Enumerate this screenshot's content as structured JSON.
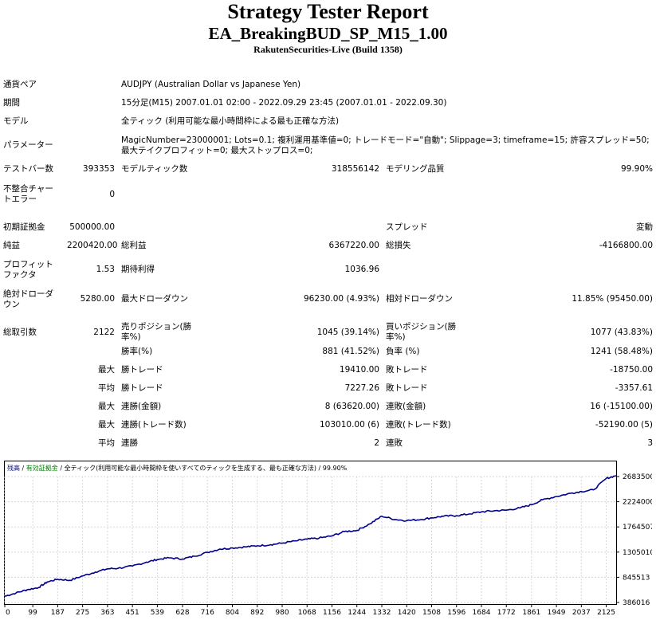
{
  "report": {
    "title": "Strategy Tester Report",
    "ea_name": "EA_BreakingBUD_SP_M15_1.00",
    "broker": "RakutenSecurities-Live (Build 1358)"
  },
  "info": {
    "symbol_label": "通貨ペア",
    "symbol_value": "AUDJPY (Australian Dollar vs Japanese Yen)",
    "period_label": "期間",
    "period_value": "15分足(M15) 2007.01.01 02:00 - 2022.09.29 23:45 (2007.01.01 - 2022.09.30)",
    "model_label": "モデル",
    "model_value": "全ティック (利用可能な最小時間枠による最も正確な方法)",
    "params_label": "パラメーター",
    "params_value": "MagicNumber=23000001; Lots=0.1; 複利運用基準値=0; トレードモード=\"自動\"; Slippage=3; timeframe=15; 許容スプレッド=50; 最大テイクプロフィット=0; 最大ストップロス=0;"
  },
  "stats": {
    "bars_label": "テストバー数",
    "bars_value": "393353",
    "ticks_label": "モデルティック数",
    "ticks_value": "318556142",
    "quality_label": "モデリング品質",
    "quality_value": "99.90%",
    "mismatch_label": "不整合チャートエラー",
    "mismatch_value": "0",
    "deposit_label": "初期証拠金",
    "deposit_value": "500000.00",
    "spread_label": "スプレッド",
    "spread_value": "変動",
    "net_label": "純益",
    "net_value": "2200420.00",
    "gross_profit_label": "総利益",
    "gross_profit_value": "6367220.00",
    "gross_loss_label": "総損失",
    "gross_loss_value": "-4166800.00",
    "pf_label": "プロフィットファクタ",
    "pf_value": "1.53",
    "expected_label": "期待利得",
    "expected_value": "1036.96",
    "abs_dd_label": "絶対ドローダウン",
    "abs_dd_value": "5280.00",
    "max_dd_label": "最大ドローダウン",
    "max_dd_value": "96230.00 (4.93%)",
    "rel_dd_label": "相対ドローダウン",
    "rel_dd_value": "11.85% (95450.00)",
    "trades_label": "総取引数",
    "trades_value": "2122",
    "short_label": "売りポジション(勝率%)",
    "short_value": "1045 (39.14%)",
    "long_label": "買いポジション(勝率%)",
    "long_value": "1077 (43.83%)",
    "winrate_label": "勝率(%)",
    "winrate_value": "881 (41.52%)",
    "lossrate_label": "負率 (%)",
    "lossrate_value": "1241 (58.48%)",
    "max1_label": "最大",
    "largest_win_label": "勝トレード",
    "largest_win_value": "19410.00",
    "largest_loss_label": "敗トレード",
    "largest_loss_value": "-18750.00",
    "avg1_label": "平均",
    "avg_win_label": "勝トレード",
    "avg_win_value": "7227.26",
    "avg_loss_label": "敗トレード",
    "avg_loss_value": "-3357.61",
    "max2_label": "最大",
    "cons_wins_money_label": "連勝(金額)",
    "cons_wins_money_value": "8 (63620.00)",
    "cons_losses_money_label": "連敗(金額)",
    "cons_losses_money_value": "16 (-15100.00)",
    "max3_label": "最大",
    "cons_profit_label": "連勝(トレード数)",
    "cons_profit_value": "103010.00 (6)",
    "cons_loss_label": "連敗(トレード数)",
    "cons_loss_value": "-52190.00 (5)",
    "avg2_label": "平均",
    "avg_cons_wins_label": "連勝",
    "avg_cons_wins_value": "2",
    "avg_cons_losses_label": "連敗",
    "avg_cons_losses_value": "3"
  },
  "chart_data": {
    "type": "line",
    "legend": {
      "balance": "残高",
      "sep1": " / ",
      "equity": "有効証拠金",
      "sep2": " / ",
      "model": "全ティック(利用可能な最小時間枠を使いすべてのティックを生成する、最も正確な方法)",
      "sep3": " / ",
      "quality": "99.90%"
    },
    "colors": {
      "balance": "#00008b",
      "equity": "#008000",
      "grid": "#d8d8d8"
    },
    "x_ticks": [
      "0",
      "99",
      "187",
      "275",
      "363",
      "451",
      "539",
      "628",
      "716",
      "804",
      "892",
      "980",
      "1068",
      "1156",
      "1244",
      "1332",
      "1420",
      "1508",
      "1596",
      "1684",
      "1772",
      "1861",
      "1949",
      "2037",
      "2125"
    ],
    "y_ticks": [
      "2683500",
      "2224000",
      "1764507",
      "1305010",
      "845513",
      "386016"
    ],
    "xlim": [
      0,
      2160
    ],
    "ylim": [
      386016,
      2683500
    ],
    "series": [
      {
        "x": [
          0,
          40,
          80,
          120,
          150,
          187,
          230,
          275,
          320,
          363,
          400,
          451,
          500,
          539,
          580,
          628,
          670,
          716,
          760,
          804,
          850,
          892,
          940,
          980,
          1030,
          1068,
          1110,
          1156,
          1200,
          1244,
          1290,
          1332,
          1380,
          1420,
          1470,
          1508,
          1550,
          1596,
          1640,
          1684,
          1730,
          1772,
          1820,
          1861,
          1900,
          1949,
          2000,
          2037,
          2080,
          2125,
          2160
        ],
        "y": [
          500000,
          560000,
          620000,
          660000,
          760000,
          810000,
          790000,
          870000,
          940000,
          1000000,
          1010000,
          1050000,
          1120000,
          1170000,
          1200000,
          1180000,
          1230000,
          1300000,
          1360000,
          1380000,
          1400000,
          1420000,
          1440000,
          1470000,
          1510000,
          1540000,
          1560000,
          1600000,
          1680000,
          1700000,
          1820000,
          1960000,
          1900000,
          1880000,
          1900000,
          1930000,
          1960000,
          1970000,
          2000000,
          2040000,
          2060000,
          2070000,
          2110000,
          2170000,
          2260000,
          2320000,
          2380000,
          2410000,
          2440000,
          2650000,
          2700420
        ]
      }
    ]
  }
}
